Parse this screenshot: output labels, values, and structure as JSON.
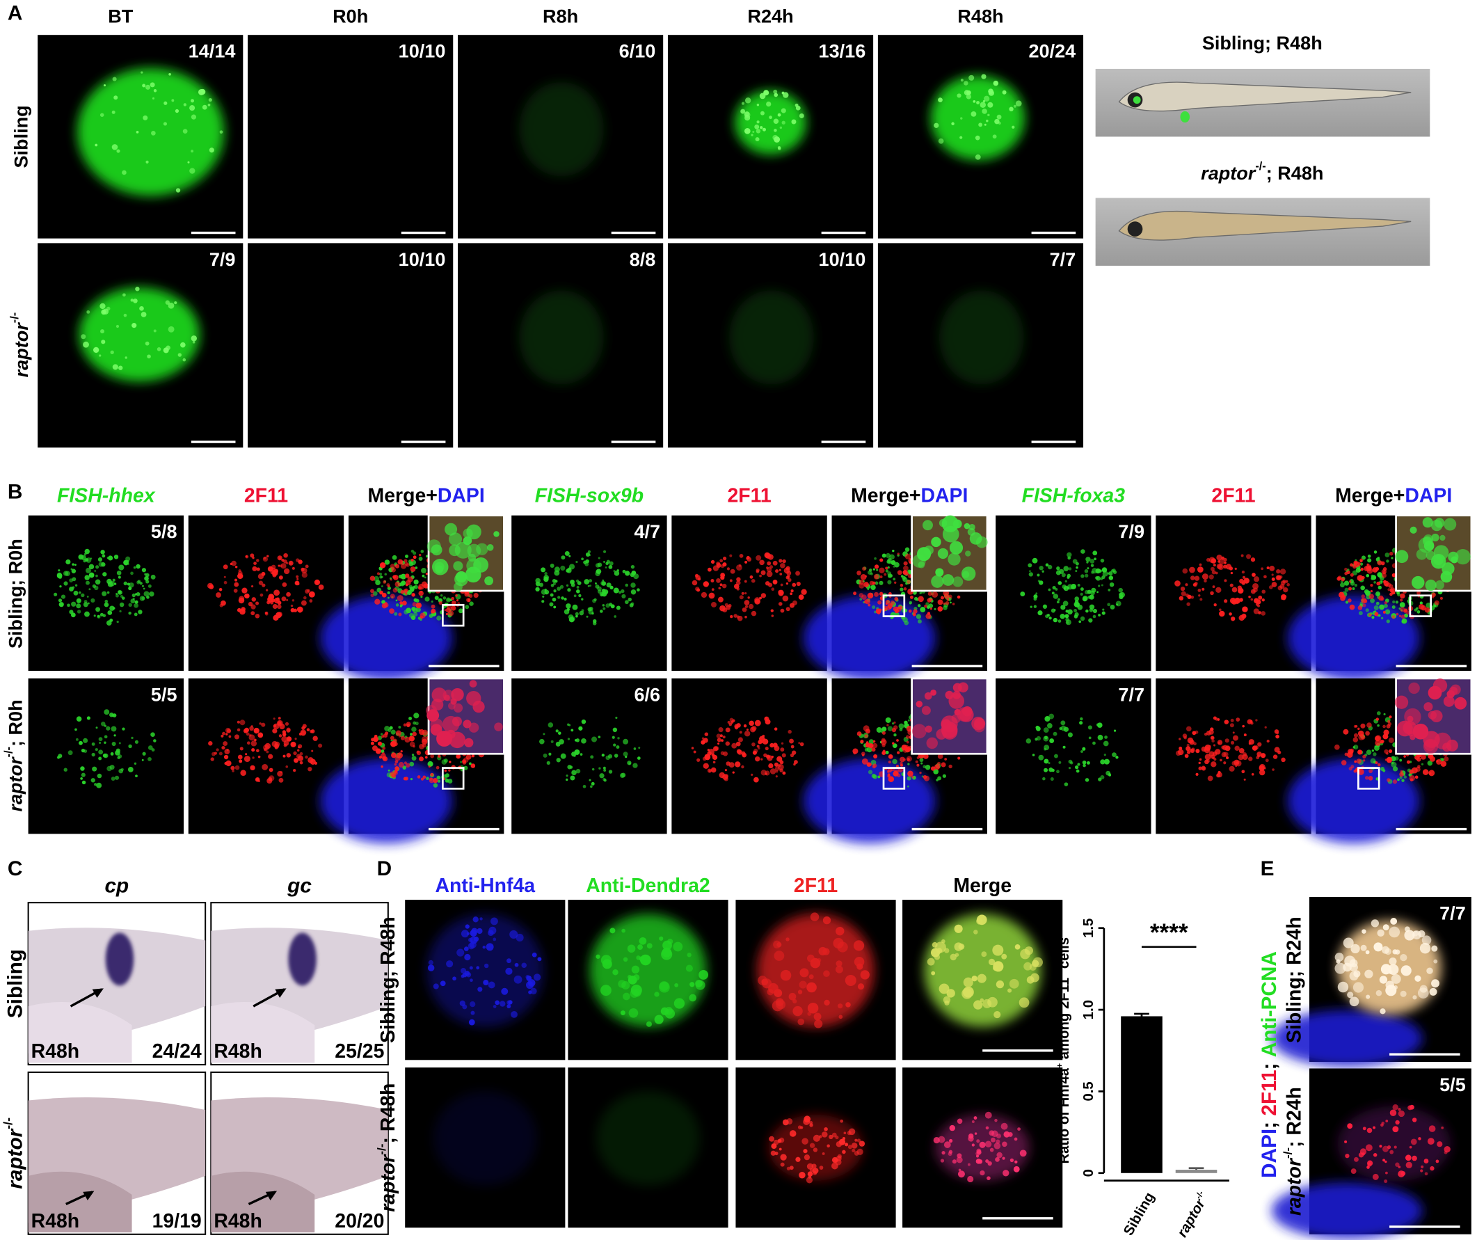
{
  "panel_a": {
    "label": "A",
    "columns": [
      "BT",
      "R0h",
      "R8h",
      "R24h",
      "R48h"
    ],
    "rows": [
      {
        "label": [
          {
            "text": "Sibling"
          }
        ],
        "counts": [
          "14/14",
          "10/10",
          "6/10",
          "13/16",
          "20/24"
        ]
      },
      {
        "label": [
          {
            "italic": "raptor"
          },
          {
            "sup": "-/-"
          }
        ],
        "counts": [
          "7/9",
          "10/10",
          "8/8",
          "10/10",
          "7/7"
        ]
      }
    ],
    "side_titles": [
      [
        {
          "text": "Sibling; R48h"
        }
      ],
      [
        {
          "italic": "raptor"
        },
        {
          "sup": "-/-"
        },
        {
          "text": "; R48h"
        }
      ]
    ]
  },
  "panel_b": {
    "label": "B",
    "groups": [
      {
        "headers": [
          [
            {
              "italic": "FISH-hhex",
              "color": "#22dd22"
            }
          ],
          [
            {
              "text": "2F11",
              "color": "#ee1133"
            }
          ],
          [
            {
              "text": "Merge+"
            },
            {
              "text": "DAPI",
              "color": "#2222ee"
            }
          ]
        ],
        "counts": [
          "5/8",
          "5/5"
        ]
      },
      {
        "headers": [
          [
            {
              "italic": "FISH-sox9b",
              "color": "#22dd22"
            }
          ],
          [
            {
              "text": "2F11",
              "color": "#ee1133"
            }
          ],
          [
            {
              "text": "Merge+"
            },
            {
              "text": "DAPI",
              "color": "#2222ee"
            }
          ]
        ],
        "counts": [
          "4/7",
          "6/6"
        ]
      },
      {
        "headers": [
          [
            {
              "italic": "FISH-foxa3",
              "color": "#22dd22"
            }
          ],
          [
            {
              "text": "2F11",
              "color": "#ee1133"
            }
          ],
          [
            {
              "text": "Merge+"
            },
            {
              "text": "DAPI",
              "color": "#2222ee"
            }
          ]
        ],
        "counts": [
          "7/9",
          "7/7"
        ]
      }
    ],
    "row_labels": [
      [
        {
          "text": "Sibling; R0h"
        }
      ],
      [
        {
          "italic": "raptor"
        },
        {
          "sup": "-/-"
        },
        {
          "text": "; R0h"
        }
      ]
    ]
  },
  "panel_c": {
    "label": "C",
    "columns": [
      "cp",
      "gc"
    ],
    "row_labels": [
      [
        {
          "text": "Sibling"
        }
      ],
      [
        {
          "italic": "raptor"
        },
        {
          "sup": "-/-"
        }
      ]
    ],
    "stage": "R48h",
    "counts": [
      [
        "24/24",
        "25/25"
      ],
      [
        "19/19",
        "20/20"
      ]
    ]
  },
  "panel_d": {
    "label": "D",
    "headers": [
      [
        {
          "text": "Anti-Hnf4a",
          "color": "#2222ee"
        }
      ],
      [
        {
          "text": "Anti-Dendra2",
          "color": "#22dd22"
        }
      ],
      [
        {
          "text": "2F11",
          "color": "#ee2222"
        }
      ],
      [
        {
          "text": "Merge"
        }
      ]
    ],
    "row_labels": [
      [
        {
          "text": "Sibling; R48h"
        }
      ],
      [
        {
          "italic": "raptor"
        },
        {
          "sup": "-/-"
        },
        {
          "text": "; R48h"
        }
      ]
    ]
  },
  "chart_data": {
    "type": "bar",
    "ylabel": [
      {
        "text": "Ratio of Hnf4a"
      },
      {
        "sup": "+"
      },
      {
        "text": " among 2F11"
      },
      {
        "sup": "+"
      },
      {
        "text": " cells"
      }
    ],
    "categories": [
      [
        {
          "text": "Sibling"
        }
      ],
      [
        {
          "italic": "raptor"
        },
        {
          "sup": "-/-"
        }
      ]
    ],
    "values": [
      0.96,
      0.02
    ],
    "errors": [
      0.015,
      0.01
    ],
    "colors": [
      "#000000",
      "#8a8a8a"
    ],
    "ylim": [
      0,
      1.5
    ],
    "yticks": [
      0,
      0.5,
      {
        "value": 1,
        "label": "1.0"
      },
      1.5
    ],
    "significance": "****"
  },
  "panel_e": {
    "label": "E",
    "stain_label": [
      {
        "text": "DAPI",
        "color": "#2222ee"
      },
      {
        "text": "; "
      },
      {
        "text": "2F11",
        "color": "#ee1133"
      },
      {
        "text": "; "
      },
      {
        "text": "Anti-PCNA",
        "color": "#22dd22"
      }
    ],
    "row_labels": [
      [
        {
          "text": "Sibling; R24h"
        }
      ],
      [
        {
          "italic": "raptor"
        },
        {
          "sup": "-/-"
        },
        {
          "text": "; R24h"
        }
      ]
    ],
    "counts": [
      "7/7",
      "5/5"
    ]
  }
}
